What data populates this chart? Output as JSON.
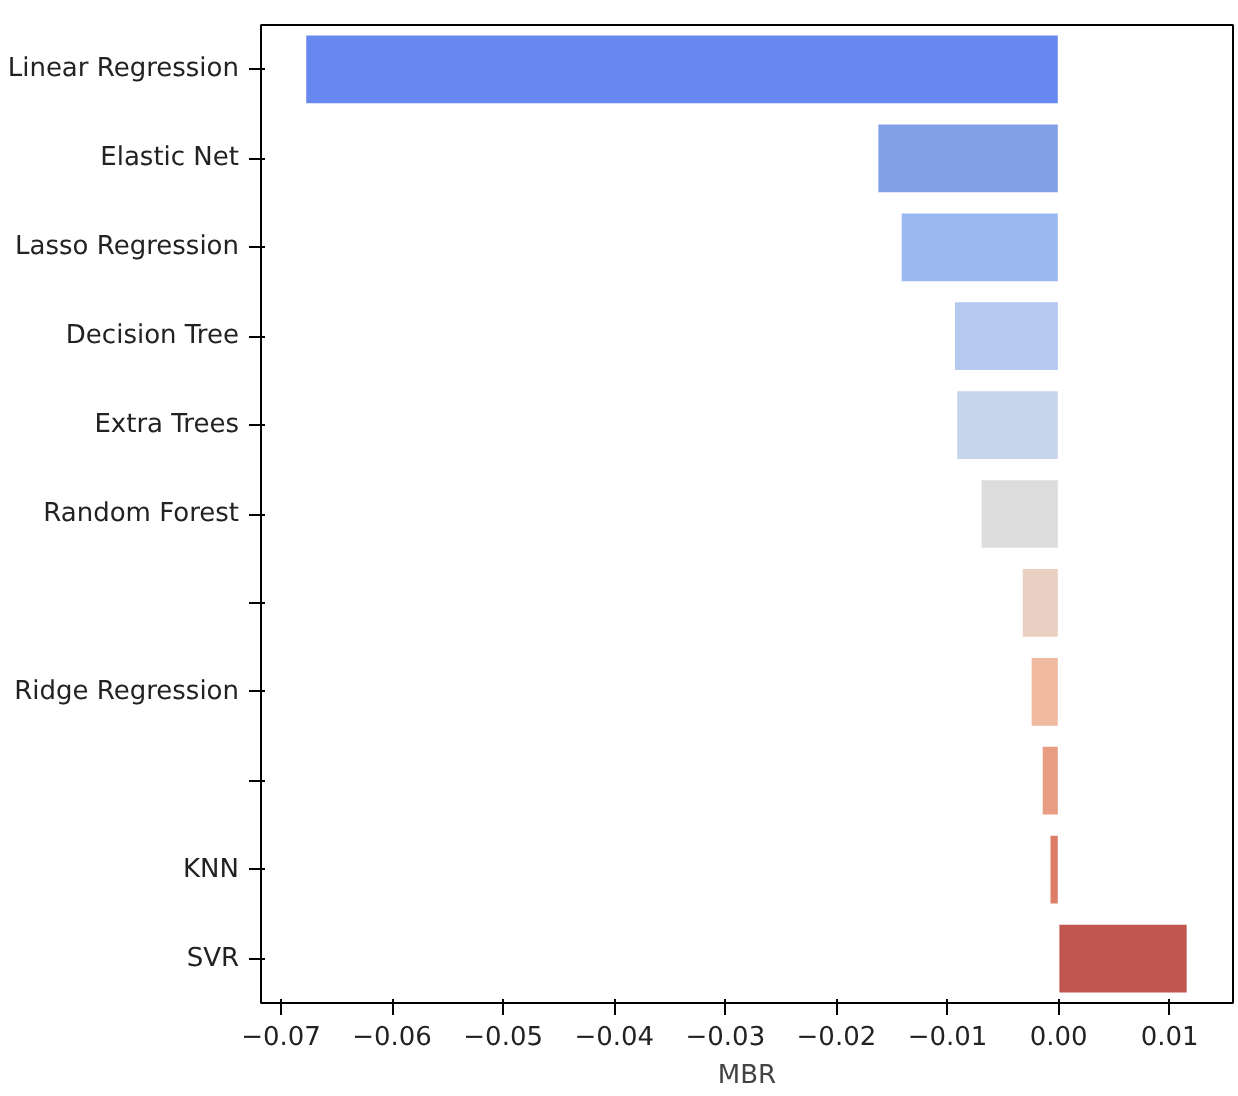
{
  "chart_data": {
    "type": "bar",
    "orientation": "horizontal",
    "xlabel": "MBR",
    "categories": [
      "Linear Regression",
      "Elastic Net",
      "Lasso Regression",
      "Decision Tree",
      "Extra Trees",
      "Random Forest",
      null,
      "Ridge Regression",
      null,
      "KNN",
      "SVR"
    ],
    "values": [
      -0.0678,
      -0.0163,
      -0.0142,
      -0.0094,
      -0.0092,
      -0.007,
      -0.0033,
      -0.0025,
      -0.0015,
      -0.0008,
      0.0116
    ],
    "colors": [
      "#6788ee",
      "#82a0e8",
      "#9ab8f0",
      "#b4c8f0",
      "#c8d4ec",
      "#dcdcdc",
      "#ead0c3",
      "#efbaa0",
      "#e89d82",
      "#dc7b66",
      "#c0564f"
    ],
    "xlim": [
      -0.0718,
      0.0157
    ],
    "xticks": [
      {
        "value": -0.07,
        "label": "−0.07"
      },
      {
        "value": -0.06,
        "label": "−0.06"
      },
      {
        "value": -0.05,
        "label": "−0.05"
      },
      {
        "value": -0.04,
        "label": "−0.04"
      },
      {
        "value": -0.03,
        "label": "−0.03"
      },
      {
        "value": -0.02,
        "label": "−0.02"
      },
      {
        "value": -0.01,
        "label": "−0.01"
      },
      {
        "value": 0,
        "label": "0.00"
      },
      {
        "value": 0.01,
        "label": "0.01"
      }
    ],
    "grid": false
  }
}
